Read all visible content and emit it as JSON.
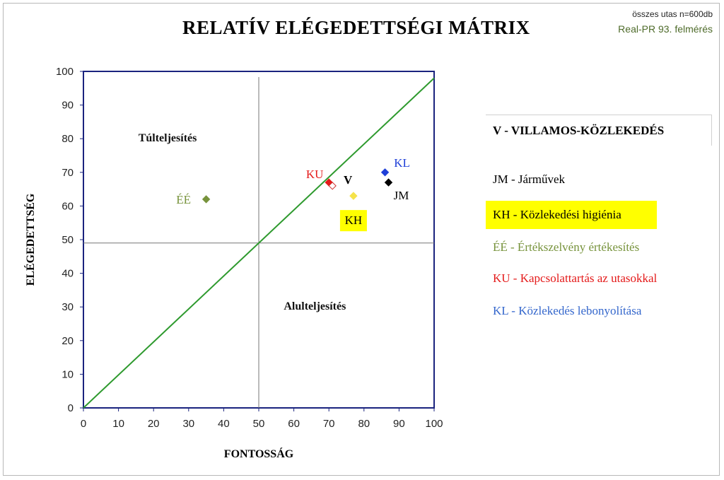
{
  "header": {
    "title": "RELATÍV ELÉGEDETTSÉGI MÁTRIX",
    "note_sample": "összes utas n=600db",
    "note_survey": "Real-PR 93. felmérés"
  },
  "legend": {
    "heading": "V - VILLAMOS-KÖZLEKEDÉS",
    "items": [
      {
        "text": "JM - Járművek",
        "color": "#000000"
      },
      {
        "text": "KH - Közlekedési higiénia",
        "color": "#000000",
        "highlight": "#ffff00"
      },
      {
        "text": "ÉÉ - Értékszelvény értékesítés",
        "color": "#77933c"
      },
      {
        "text": "KU - Kapcsolattartás  az utasokkal",
        "color": "#e41a1a"
      },
      {
        "text": "KL - Közlekedés lebonyolítása",
        "color": "#3366cc"
      }
    ]
  },
  "chart_data": {
    "type": "scatter",
    "xlabel": "FONTOSSÁG",
    "ylabel": "ELÉGEDETTSÉG",
    "xlim": [
      0,
      100
    ],
    "ylim": [
      0,
      100
    ],
    "xticks": [
      0,
      10,
      20,
      30,
      40,
      50,
      60,
      70,
      80,
      90,
      100
    ],
    "yticks": [
      0,
      10,
      20,
      30,
      40,
      50,
      60,
      70,
      80,
      90,
      100
    ],
    "grid": false,
    "quadrant_lines": {
      "x": 50,
      "y": 49
    },
    "diagonal": {
      "from": [
        0,
        0
      ],
      "to": [
        100,
        98
      ],
      "color": "#2e9a2e"
    },
    "quadrant_labels": [
      {
        "text": "Túlteljesítés",
        "x": 24,
        "y": 80
      },
      {
        "text": "Alulteljesítés",
        "x": 66,
        "y": 30
      }
    ],
    "points": [
      {
        "label": "ÉÉ",
        "x": 35,
        "y": 62,
        "color": "#77933c",
        "label_color": "#77933c"
      },
      {
        "label": "KU",
        "x": 70,
        "y": 67,
        "color": "#e41a1a",
        "label_color": "#e41a1a"
      },
      {
        "label": "V",
        "x": 71,
        "y": 66,
        "color": "#ffffff",
        "label_color": "#000000"
      },
      {
        "label": "KH",
        "x": 77,
        "y": 63,
        "color": "#f5e34a",
        "label_color": "#000000",
        "label_bg": "#ffff00"
      },
      {
        "label": "KL",
        "x": 86,
        "y": 70,
        "color": "#1f3fd8",
        "label_color": "#1f3fd8"
      },
      {
        "label": "JM",
        "x": 87,
        "y": 67,
        "color": "#000000",
        "label_color": "#000000"
      }
    ]
  }
}
